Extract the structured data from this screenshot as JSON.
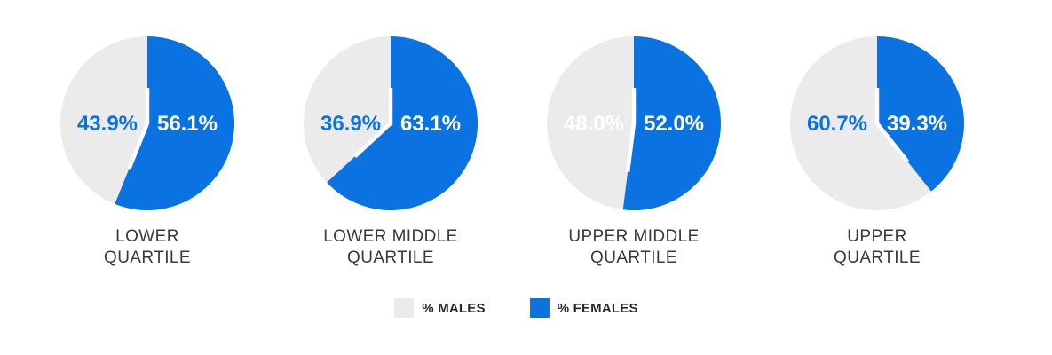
{
  "page": {
    "background": "#ffffff"
  },
  "chart_data": {
    "type": "pie",
    "layout": "four-pies-in-a-row",
    "start_angle_deg": 0,
    "direction": "clockwise",
    "series_colors": {
      "males": "#ebebeb",
      "females": "#0b72e2"
    },
    "charts": [
      {
        "title_lines": [
          "LOWER",
          "QUARTILE"
        ],
        "slices": [
          {
            "name": "% MALES",
            "value": 43.9,
            "label": "43.9%",
            "color": "#ebebeb",
            "label_color": "#0b72e2",
            "label_side": "left"
          },
          {
            "name": "% FEMALES",
            "value": 56.1,
            "label": "56.1%",
            "color": "#0b72e2",
            "label_color": "#ffffff",
            "label_side": "right"
          }
        ]
      },
      {
        "title_lines": [
          "LOWER MIDDLE",
          "QUARTILE"
        ],
        "slices": [
          {
            "name": "% MALES",
            "value": 36.9,
            "label": "36.9%",
            "color": "#ebebeb",
            "label_color": "#0b72e2",
            "label_side": "left"
          },
          {
            "name": "% FEMALES",
            "value": 63.1,
            "label": "63.1%",
            "color": "#0b72e2",
            "label_color": "#ffffff",
            "label_side": "right"
          }
        ]
      },
      {
        "title_lines": [
          "UPPER MIDDLE",
          "QUARTILE"
        ],
        "slices": [
          {
            "name": "% MALES",
            "value": 48.0,
            "label": "48.0%",
            "color": "#ebebeb",
            "label_color": "#ffffff",
            "label_side": "left"
          },
          {
            "name": "% FEMALES",
            "value": 52.0,
            "label": "52.0%",
            "color": "#0b72e2",
            "label_color": "#ffffff",
            "label_side": "right"
          }
        ]
      },
      {
        "title_lines": [
          "UPPER",
          "QUARTILE"
        ],
        "slices": [
          {
            "name": "% MALES",
            "value": 60.7,
            "label": "60.7%",
            "color": "#ebebeb",
            "label_color": "#0b72e2",
            "label_side": "left"
          },
          {
            "name": "% FEMALES",
            "value": 39.3,
            "label": "39.3%",
            "color": "#0b72e2",
            "label_color": "#ffffff",
            "label_side": "right"
          }
        ]
      }
    ],
    "legend": {
      "position": "bottom-center",
      "items": [
        {
          "label": "% MALES",
          "color": "#ebebeb"
        },
        {
          "label": "% FEMALES",
          "color": "#0b72e2"
        }
      ]
    }
  }
}
